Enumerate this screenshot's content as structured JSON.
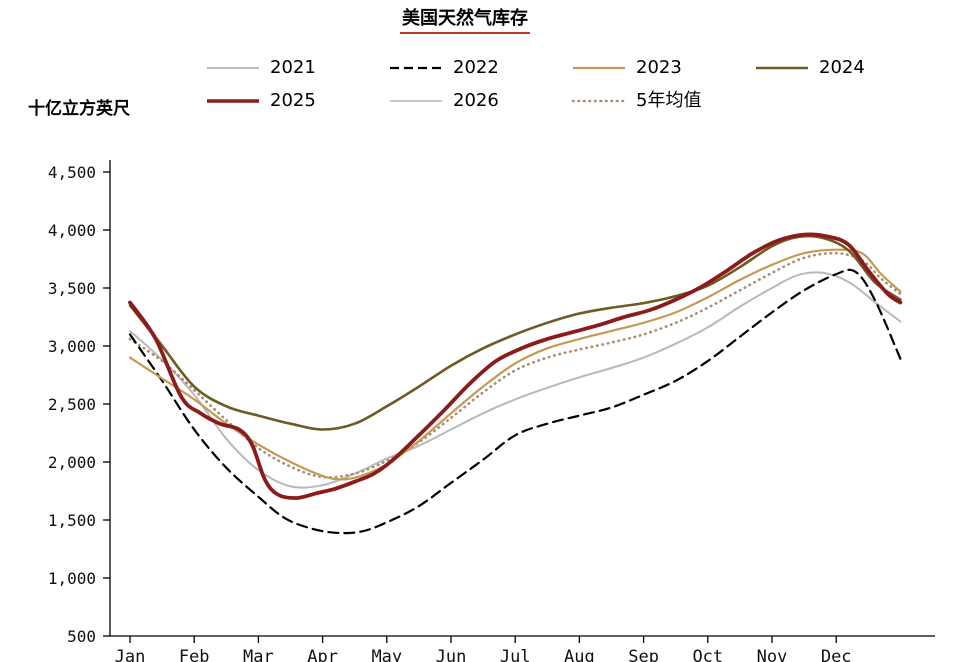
{
  "title": "美国天然气库存",
  "y_axis_label": "十亿立方英尺",
  "accent_underline_color": "#bf3a2b",
  "legend_rows": [
    [
      "2021",
      "2022",
      "2023",
      "2024"
    ],
    [
      "2025",
      "2026",
      "5年均值"
    ]
  ],
  "chart_data": {
    "type": "line",
    "title": "美国天然气库存",
    "ylabel": "十亿立方英尺",
    "x_unit": "month (0 = start of Jan, fractional = position within year)",
    "x_tick_labels": [
      "Jan",
      "Feb",
      "Mar",
      "Apr",
      "May",
      "Jun",
      "Jul",
      "Aug",
      "Sep",
      "Oct",
      "Nov",
      "Dec"
    ],
    "ylim": [
      500,
      4500
    ],
    "y_tick_step": 500,
    "grid": false,
    "legend_position": "top",
    "series": [
      {
        "name": "2021",
        "color": "#b9b9b9",
        "dash": "solid",
        "width": 2,
        "x": [
          0,
          0.5,
          1,
          1.5,
          2,
          2.5,
          3,
          3.5,
          4,
          4.5,
          5,
          5.5,
          6,
          6.5,
          7,
          7.5,
          8,
          8.5,
          9,
          9.5,
          10,
          10.4,
          10.8,
          11.2,
          11.6,
          12
        ],
        "values": [
          3130,
          2880,
          2580,
          2200,
          1930,
          1790,
          1800,
          1900,
          2030,
          2140,
          2280,
          2420,
          2540,
          2640,
          2730,
          2810,
          2900,
          3020,
          3160,
          3340,
          3500,
          3610,
          3630,
          3550,
          3380,
          3210
        ]
      },
      {
        "name": "2022",
        "color": "#000000",
        "dash": "dashed",
        "width": 2.2,
        "x": [
          0,
          0.5,
          1,
          1.5,
          2,
          2.4,
          2.8,
          3.2,
          3.6,
          4,
          4.5,
          5,
          5.5,
          6,
          6.5,
          7,
          7.5,
          8,
          8.5,
          9,
          9.5,
          10,
          10.5,
          11,
          11.3,
          11.6,
          12
        ],
        "values": [
          3100,
          2700,
          2280,
          1950,
          1700,
          1520,
          1430,
          1390,
          1400,
          1480,
          1620,
          1820,
          2020,
          2230,
          2330,
          2400,
          2470,
          2580,
          2700,
          2870,
          3080,
          3290,
          3480,
          3620,
          3640,
          3400,
          2890
        ]
      },
      {
        "name": "2023",
        "color": "#c49a53",
        "dash": "solid",
        "width": 2.2,
        "x": [
          0,
          0.5,
          1,
          1.5,
          2,
          2.5,
          3,
          3.3,
          3.6,
          4,
          4.5,
          5,
          5.5,
          6,
          6.5,
          7,
          7.5,
          8,
          8.5,
          9,
          9.5,
          10,
          10.5,
          11,
          11.4,
          11.7,
          12
        ],
        "values": [
          2900,
          2720,
          2540,
          2330,
          2150,
          2000,
          1880,
          1850,
          1880,
          1980,
          2180,
          2420,
          2650,
          2850,
          2980,
          3060,
          3130,
          3200,
          3290,
          3420,
          3570,
          3700,
          3800,
          3830,
          3800,
          3620,
          3470
        ]
      },
      {
        "name": "2024",
        "color": "#6e5a23",
        "dash": "solid",
        "width": 2.6,
        "x": [
          0,
          0.5,
          1,
          1.5,
          2,
          2.5,
          3,
          3.5,
          4,
          4.5,
          5,
          5.5,
          6,
          6.5,
          7,
          7.5,
          8,
          8.5,
          9,
          9.5,
          10,
          10.4,
          10.8,
          11.2,
          11.6,
          12
        ],
        "values": [
          3350,
          3000,
          2650,
          2480,
          2400,
          2330,
          2280,
          2330,
          2480,
          2650,
          2830,
          2980,
          3100,
          3200,
          3280,
          3330,
          3370,
          3430,
          3520,
          3680,
          3860,
          3940,
          3930,
          3820,
          3550,
          3400
        ]
      },
      {
        "name": "2025",
        "color": "#8c1b1b",
        "dash": "solid",
        "width": 3.8,
        "x": [
          0,
          0.4,
          0.8,
          1.1,
          1.4,
          1.7,
          1.9,
          2.1,
          2.3,
          2.6,
          2.9,
          3.2,
          3.5,
          3.8,
          4.1,
          4.5,
          4.9,
          5.3,
          5.7,
          6.1,
          6.5,
          6.9,
          7.3,
          7.7,
          8.1,
          8.5,
          8.9,
          9.3,
          9.7,
          10.1,
          10.5,
          10.9,
          11.2,
          11.5,
          11.8,
          12
        ],
        "values": [
          3375,
          3060,
          2560,
          2420,
          2330,
          2280,
          2150,
          1850,
          1720,
          1690,
          1730,
          1770,
          1830,
          1900,
          2020,
          2230,
          2450,
          2680,
          2870,
          2980,
          3060,
          3120,
          3180,
          3250,
          3310,
          3400,
          3510,
          3650,
          3800,
          3910,
          3960,
          3940,
          3870,
          3650,
          3450,
          3375
        ]
      },
      {
        "name": "2026",
        "color": "#c8c8c8",
        "dash": "solid",
        "width": 2,
        "x": [
          0,
          0.3,
          0.6
        ],
        "values": [
          3380,
          3160,
          2940
        ]
      },
      {
        "name": "5年均值",
        "color": "#a98d74",
        "dash": "dotted",
        "width": 2.6,
        "x": [
          0,
          0.5,
          1,
          1.5,
          2,
          2.5,
          3,
          3.5,
          4,
          4.5,
          5,
          5.5,
          6,
          6.5,
          7,
          7.5,
          8,
          8.5,
          9,
          9.5,
          10,
          10.5,
          11,
          11.4,
          11.7,
          12
        ],
        "values": [
          3060,
          2870,
          2620,
          2360,
          2120,
          1960,
          1870,
          1900,
          2010,
          2170,
          2380,
          2600,
          2790,
          2900,
          2970,
          3030,
          3100,
          3200,
          3330,
          3480,
          3630,
          3760,
          3800,
          3740,
          3580,
          3450
        ]
      }
    ],
    "draw_order": [
      "2026",
      "2021",
      "5年均值",
      "2022",
      "2023",
      "2024",
      "2025"
    ]
  }
}
